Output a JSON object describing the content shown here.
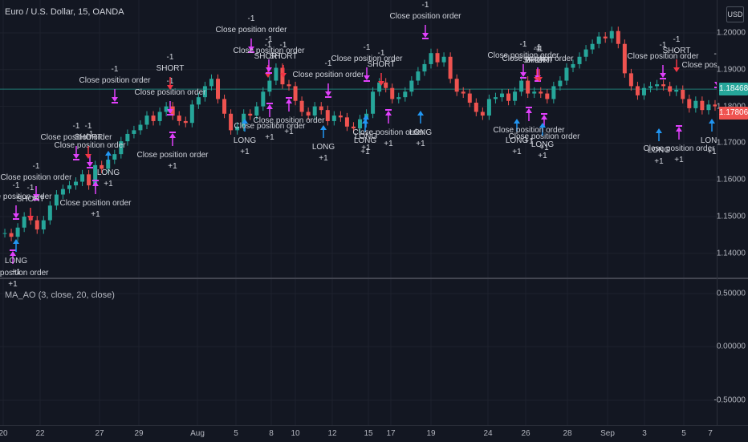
{
  "symbol_title": "Euro / U.S. Dollar, 15, OANDA",
  "indicator_title": "MA_AO (3, close, 20, close)",
  "currency_button": "USD",
  "price_axis": [
    "1.20000",
    "1.19000",
    "1.18000",
    "1.17000",
    "1.16000",
    "1.15000",
    "1.14000"
  ],
  "price_badges": {
    "upper": "1.18468",
    "lower": "1.17806",
    "upper_color": "#26a69a",
    "lower_color": "#ef5350"
  },
  "osc_axis": [
    "0.50000",
    "0.00000",
    "-0.50000"
  ],
  "time_axis": [
    "20",
    "22",
    "27",
    "29",
    "Aug",
    "5",
    "8",
    "10",
    "12",
    "15",
    "17",
    "19",
    "24",
    "26",
    "28",
    "Sep",
    "3",
    "5",
    "7"
  ],
  "colors": {
    "up": "#26a69a",
    "down": "#ef5350",
    "long": "#2196f3",
    "short": "#f23645",
    "close": "#e040fb",
    "background": "#131722"
  },
  "price_series": [
    1.1455,
    1.1445,
    1.147,
    1.15,
    1.149,
    1.1465,
    1.149,
    1.153,
    1.156,
    1.1575,
    1.1585,
    1.1595,
    1.1615,
    1.1585,
    1.164,
    1.163,
    1.1655,
    1.167,
    1.1705,
    1.1725,
    1.1735,
    1.175,
    1.1775,
    1.176,
    1.1785,
    1.18,
    1.1775,
    1.176,
    1.1755,
    1.1805,
    1.1825,
    1.1855,
    1.1875,
    1.182,
    1.178,
    1.1735,
    1.1745,
    1.178,
    1.1775,
    1.18,
    1.184,
    1.187,
    1.1905,
    1.186,
    1.1855,
    1.1815,
    1.1785,
    1.1775,
    1.18,
    1.179,
    1.176,
    1.1775,
    1.177,
    1.1745,
    1.174,
    1.1765,
    1.178,
    1.184,
    1.1865,
    1.185,
    1.182,
    1.1825,
    1.184,
    1.187,
    1.1895,
    1.1915,
    1.1945,
    1.192,
    1.1935,
    1.1875,
    1.184,
    1.1835,
    1.181,
    1.1785,
    1.1775,
    1.182,
    1.1825,
    1.1835,
    1.1815,
    1.184,
    1.187,
    1.1835,
    1.184,
    1.1835,
    1.182,
    1.1855,
    1.187,
    1.1905,
    1.1915,
    1.1935,
    1.1955,
    1.197,
    1.199,
    1.1985,
    1.2005,
    1.197,
    1.189,
    1.1855,
    1.183,
    1.185,
    1.1855,
    1.186,
    1.1855,
    1.184,
    1.1845,
    1.182,
    1.1795,
    1.1815,
    1.179,
    1.1805,
    1.18
  ],
  "trades": [
    {
      "kind": "close",
      "label": "Close position order",
      "qty": "-1"
    },
    {
      "kind": "close",
      "label": "Close position order",
      "qty": "-1"
    },
    {
      "kind": "short",
      "label": "SHORT",
      "qty": "-1"
    },
    {
      "kind": "close",
      "label": "Close position order",
      "qty": "+1"
    },
    {
      "kind": "long",
      "label": "LONG",
      "qty": "+1"
    },
    {
      "kind": "close",
      "label": "Close position order",
      "qty": "-1"
    },
    {
      "kind": "close",
      "label": "Close position order",
      "qty": "-1"
    },
    {
      "kind": "short",
      "label": "SHORT",
      "qty": "-1"
    },
    {
      "kind": "close",
      "label": "Close position order",
      "qty": "+1"
    },
    {
      "kind": "long",
      "label": "LONG",
      "qty": "+1"
    },
    {
      "kind": "close",
      "label": "Close position order",
      "qty": "-1"
    },
    {
      "kind": "close",
      "label": "Close position order",
      "qty": "-1"
    },
    {
      "kind": "short",
      "label": "SHORT",
      "qty": "-1"
    },
    {
      "kind": "close",
      "label": "Close position order",
      "qty": "+1"
    },
    {
      "kind": "long",
      "label": "LONG",
      "qty": "+1"
    },
    {
      "kind": "close",
      "label": "Close position order",
      "qty": "-1"
    },
    {
      "kind": "short",
      "label": "SHORT",
      "qty": "-1"
    },
    {
      "kind": "close",
      "label": "Close position order",
      "qty": "-1"
    },
    {
      "kind": "close",
      "label": "Close position order",
      "qty": "+1"
    },
    {
      "kind": "close",
      "label": "Close position order",
      "qty": "+1"
    },
    {
      "kind": "long",
      "label": "LONG",
      "qty": "+1"
    },
    {
      "kind": "long",
      "label": "LONG",
      "qty": "+1"
    },
    {
      "kind": "short",
      "label": "SHORT",
      "qty": "-1"
    },
    {
      "kind": "close",
      "label": "Close position order",
      "qty": "-1"
    },
    {
      "kind": "close",
      "label": "Close position order",
      "qty": "-1"
    },
    {
      "kind": "short",
      "label": "SHORT",
      "qty": "-1"
    },
    {
      "kind": "close",
      "label": "Close position order",
      "qty": "+1"
    },
    {
      "kind": "long",
      "label": "LONG",
      "qty": "+1"
    },
    {
      "kind": "long",
      "label": "LONG",
      "qty": "+1"
    },
    {
      "kind": "close",
      "label": "Close position order",
      "qty": "-1"
    },
    {
      "kind": "short",
      "label": "SHORT",
      "qty": "-1"
    },
    {
      "kind": "close",
      "label": "Close position order",
      "qty": "+1"
    },
    {
      "kind": "long",
      "label": "LONG",
      "qty": "+1"
    },
    {
      "kind": "long",
      "label": "LONG",
      "qty": "+1"
    },
    {
      "kind": "close",
      "label": "Close position order",
      "qty": "-1"
    },
    {
      "kind": "close",
      "label": "Close position order",
      "qty": "-1"
    },
    {
      "kind": "short",
      "label": "SHORT",
      "qty": "-1"
    },
    {
      "kind": "close",
      "label": "Close position order",
      "qty": "+1"
    },
    {
      "kind": "long",
      "label": "LONG",
      "qty": "+1"
    },
    {
      "kind": "close",
      "label": "Close position order",
      "qty": "-1"
    },
    {
      "kind": "short",
      "label": "SHORT",
      "qty": "-1"
    },
    {
      "kind": "close",
      "label": "Close position order",
      "qty": "+1"
    },
    {
      "kind": "long",
      "label": "LONG",
      "qty": "+1"
    },
    {
      "kind": "close",
      "label": "Close position order",
      "qty": "-1"
    }
  ]
}
